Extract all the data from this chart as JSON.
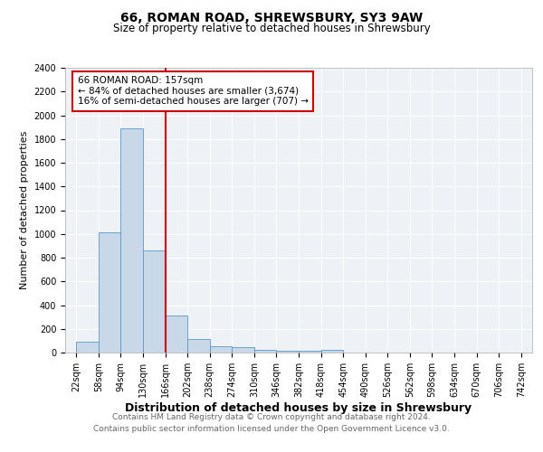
{
  "title": "66, ROMAN ROAD, SHREWSBURY, SY3 9AW",
  "subtitle": "Size of property relative to detached houses in Shrewsbury",
  "xlabel": "Distribution of detached houses by size in Shrewsbury",
  "ylabel": "Number of detached properties",
  "footer_line1": "Contains HM Land Registry data © Crown copyright and database right 2024.",
  "footer_line2": "Contains public sector information licensed under the Open Government Licence v3.0.",
  "bin_edges": [
    22,
    58,
    94,
    130,
    166,
    202,
    238,
    274,
    310,
    346,
    382,
    418,
    454,
    490,
    526,
    562,
    598,
    634,
    670,
    706,
    742
  ],
  "bar_heights": [
    90,
    1010,
    1890,
    860,
    310,
    115,
    55,
    45,
    25,
    15,
    15,
    20,
    0,
    0,
    0,
    0,
    0,
    0,
    0,
    0
  ],
  "bar_color": "#c8d8e8",
  "bar_edgecolor": "#5899c8",
  "property_line_x": 166,
  "property_size": 157,
  "property_label": "66 ROMAN ROAD: 157sqm",
  "annotation_line2": "← 84% of detached houses are smaller (3,674)",
  "annotation_line3": "16% of semi-detached houses are larger (707) →",
  "vline_color": "#cc0000",
  "ylim": [
    0,
    2400
  ],
  "yticks": [
    0,
    200,
    400,
    600,
    800,
    1000,
    1200,
    1400,
    1600,
    1800,
    2000,
    2200,
    2400
  ],
  "annotation_box_color": "#cc0000",
  "title_fontsize": 10,
  "subtitle_fontsize": 8.5,
  "xlabel_fontsize": 9,
  "ylabel_fontsize": 8,
  "tick_fontsize": 7,
  "annotation_fontsize": 7.5,
  "footer_fontsize": 6.5
}
